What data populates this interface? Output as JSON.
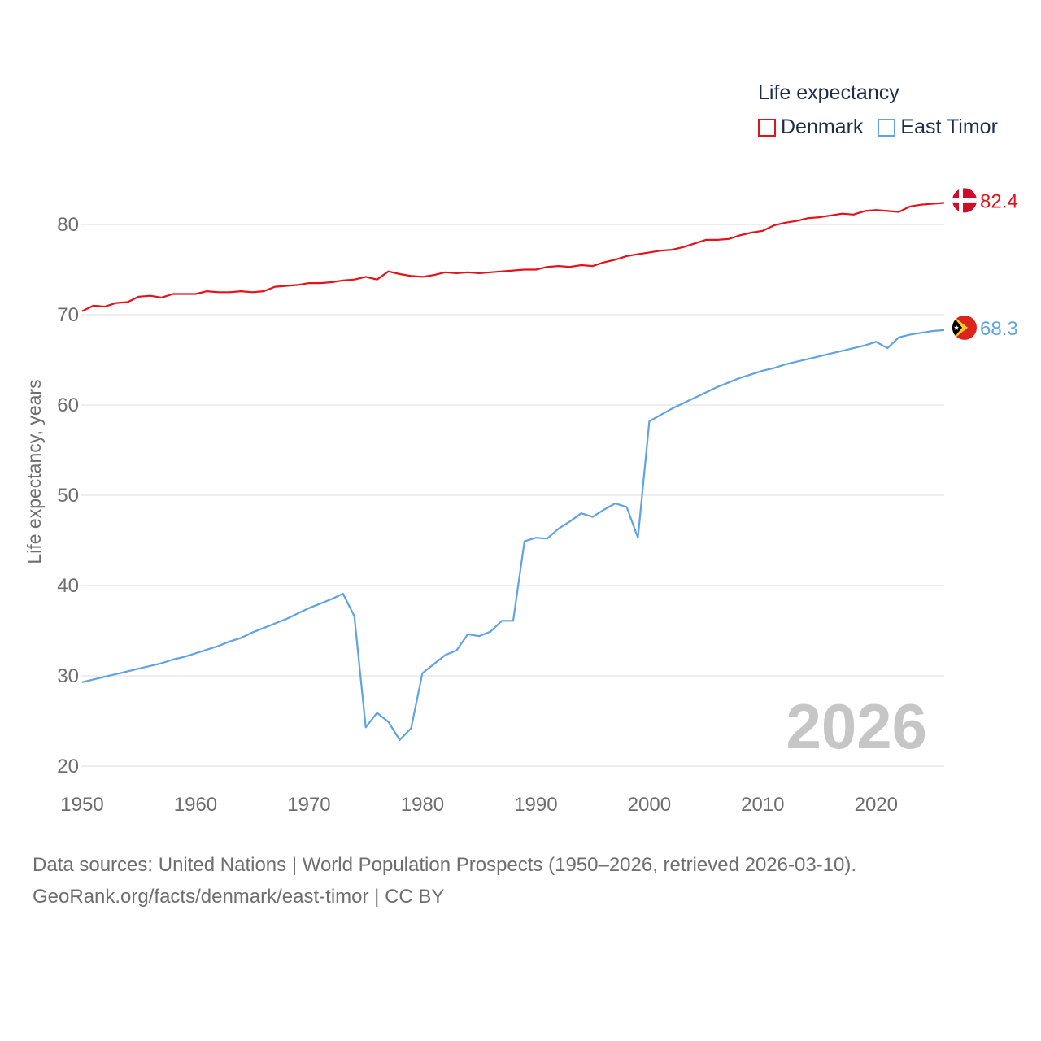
{
  "legend": {
    "title": "Life expectancy",
    "items": [
      {
        "label": "Denmark",
        "color": "#e3121b"
      },
      {
        "label": "East Timor",
        "color": "#5fa3e4"
      }
    ]
  },
  "footer": {
    "line1": "Data sources: United Nations | World Population Prospects (1950–2026, retrieved 2026-03-10).",
    "line2": "GeoRank.org/facts/denmark/east-timor | CC BY"
  },
  "chart_data": {
    "type": "line",
    "title": "Life expectancy",
    "xlabel": "",
    "ylabel": "Life expectancy, years",
    "xlim": [
      1950,
      2026
    ],
    "ylim": [
      20,
      85
    ],
    "xticks": [
      1950,
      1960,
      1970,
      1980,
      1990,
      2000,
      2010,
      2020
    ],
    "yticks": [
      20,
      30,
      40,
      50,
      60,
      70,
      80
    ],
    "grid": true,
    "year_label": "2026",
    "x": [
      1950,
      1951,
      1952,
      1953,
      1954,
      1955,
      1956,
      1957,
      1958,
      1959,
      1960,
      1961,
      1962,
      1963,
      1964,
      1965,
      1966,
      1967,
      1968,
      1969,
      1970,
      1971,
      1972,
      1973,
      1974,
      1975,
      1976,
      1977,
      1978,
      1979,
      1980,
      1981,
      1982,
      1983,
      1984,
      1985,
      1986,
      1987,
      1988,
      1989,
      1990,
      1991,
      1992,
      1993,
      1994,
      1995,
      1996,
      1997,
      1998,
      1999,
      2000,
      2001,
      2002,
      2003,
      2004,
      2005,
      2006,
      2007,
      2008,
      2009,
      2010,
      2011,
      2012,
      2013,
      2014,
      2015,
      2016,
      2017,
      2018,
      2019,
      2020,
      2021,
      2022,
      2023,
      2024,
      2025,
      2026
    ],
    "series": [
      {
        "name": "Denmark",
        "color": "#e3121b",
        "end_label": "82.4",
        "values": [
          70.4,
          71.0,
          70.9,
          71.3,
          71.4,
          72.0,
          72.1,
          71.9,
          72.3,
          72.3,
          72.3,
          72.6,
          72.5,
          72.5,
          72.6,
          72.5,
          72.6,
          73.1,
          73.2,
          73.3,
          73.5,
          73.5,
          73.6,
          73.8,
          73.9,
          74.2,
          73.9,
          74.8,
          74.5,
          74.3,
          74.2,
          74.4,
          74.7,
          74.6,
          74.7,
          74.6,
          74.7,
          74.8,
          74.9,
          75.0,
          75.0,
          75.3,
          75.4,
          75.3,
          75.5,
          75.4,
          75.8,
          76.1,
          76.5,
          76.7,
          76.9,
          77.1,
          77.2,
          77.5,
          77.9,
          78.3,
          78.3,
          78.4,
          78.8,
          79.1,
          79.3,
          79.9,
          80.2,
          80.4,
          80.7,
          80.8,
          81.0,
          81.2,
          81.1,
          81.5,
          81.6,
          81.5,
          81.4,
          82.0,
          82.2,
          82.3,
          82.4
        ]
      },
      {
        "name": "East Timor",
        "color": "#5fa3e4",
        "end_label": "68.3",
        "values": [
          29.3,
          29.6,
          29.9,
          30.2,
          30.5,
          30.8,
          31.1,
          31.4,
          31.8,
          32.1,
          32.5,
          32.9,
          33.3,
          33.8,
          34.2,
          34.8,
          35.3,
          35.8,
          36.3,
          36.9,
          37.5,
          38.0,
          38.5,
          39.1,
          36.6,
          24.3,
          25.9,
          24.9,
          22.9,
          24.2,
          30.3,
          31.3,
          32.3,
          32.8,
          34.6,
          34.4,
          34.9,
          36.1,
          36.1,
          44.9,
          45.3,
          45.2,
          46.3,
          47.1,
          48.0,
          47.6,
          48.4,
          49.1,
          48.7,
          45.3,
          58.2,
          58.9,
          59.6,
          60.2,
          60.8,
          61.4,
          62.0,
          62.5,
          63.0,
          63.4,
          63.8,
          64.1,
          64.5,
          64.8,
          65.1,
          65.4,
          65.7,
          66.0,
          66.3,
          66.6,
          67.0,
          66.3,
          67.5,
          67.8,
          68.0,
          68.2,
          68.3
        ]
      }
    ]
  }
}
